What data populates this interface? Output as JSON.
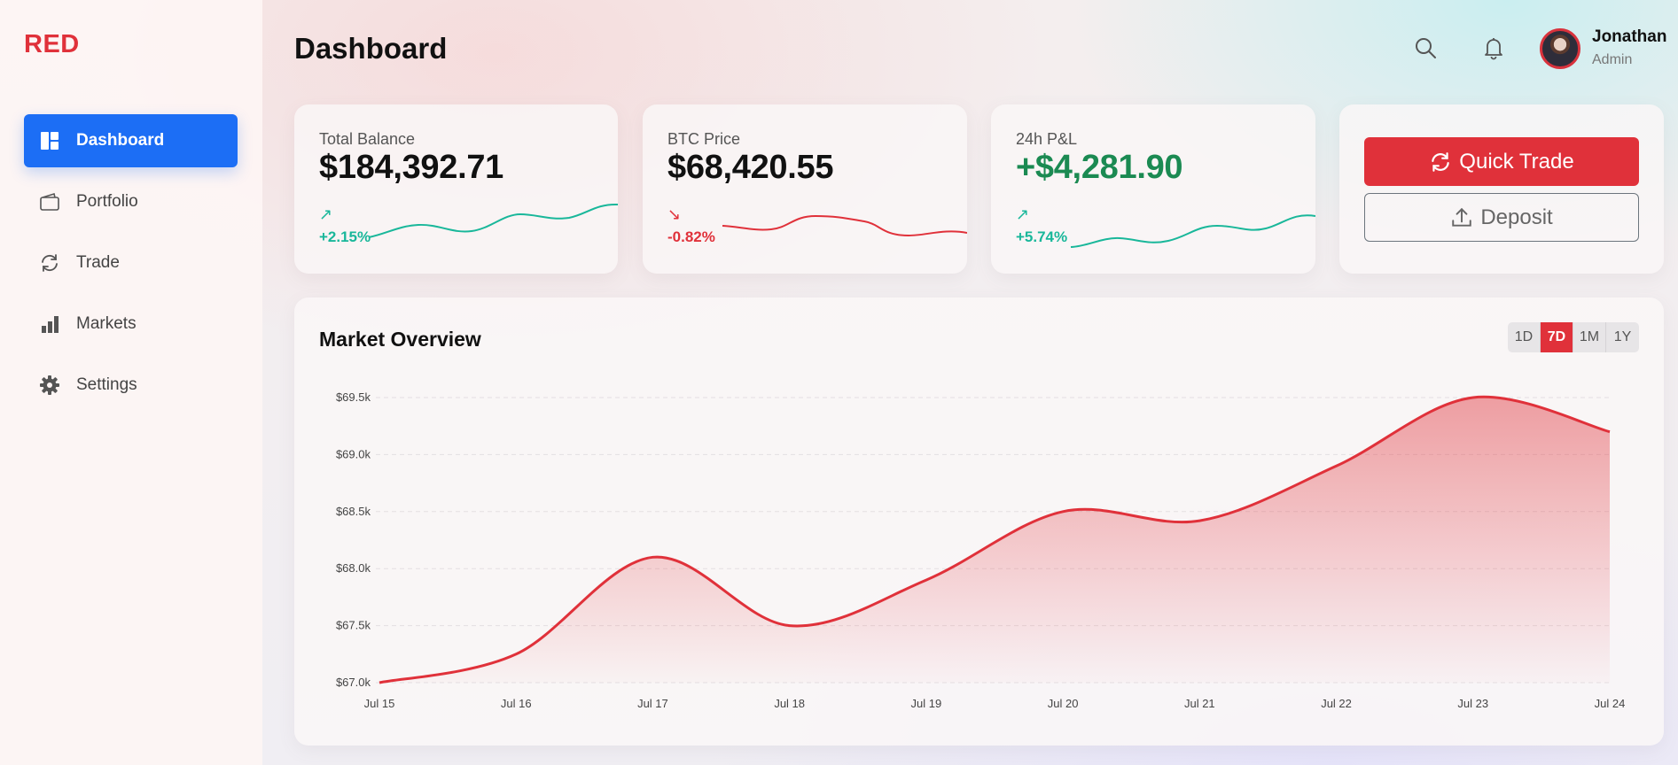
{
  "app": {
    "logo": "RED"
  },
  "sidebar": {
    "items": [
      {
        "label": "Dashboard",
        "icon": "dashboard-icon",
        "active": true
      },
      {
        "label": "Portfolio",
        "icon": "wallet-icon",
        "active": false
      },
      {
        "label": "Trade",
        "icon": "refresh-icon",
        "active": false
      },
      {
        "label": "Markets",
        "icon": "bar-chart-icon",
        "active": false
      },
      {
        "label": "Settings",
        "icon": "gear-icon",
        "active": false
      }
    ]
  },
  "header": {
    "title": "Dashboard",
    "user": {
      "name": "Jonathan",
      "role": "Admin"
    }
  },
  "cards": [
    {
      "label": "Total Balance",
      "value": "$184,392.71",
      "arrow": "↗",
      "change": "+2.15%",
      "trend": "up"
    },
    {
      "label": "BTC Price",
      "value": "$68,420.55",
      "arrow": "↘",
      "change": "-0.82%",
      "trend": "down"
    },
    {
      "label": "24h P&L",
      "value": "+$4,281.90",
      "arrow": "↗",
      "change": "+5.74%",
      "trend": "up"
    }
  ],
  "actions": {
    "quick_trade": "Quick Trade",
    "deposit": "Deposit"
  },
  "market": {
    "title": "Market Overview",
    "ranges": [
      "1D",
      "7D",
      "1M",
      "1Y"
    ],
    "active_range": "7D"
  },
  "colors": {
    "accent": "#e0313a",
    "primary": "#1c6ef5",
    "up": "#19b79a",
    "down": "#e0313a",
    "profit": "#1b8a52"
  },
  "chart_data": {
    "type": "area",
    "x": [
      "Jul 15",
      "Jul 16",
      "Jul 17",
      "Jul 18",
      "Jul 19",
      "Jul 20",
      "Jul 21",
      "Jul 22",
      "Jul 23",
      "Jul 24"
    ],
    "values": [
      67000,
      67250,
      68100,
      67500,
      67900,
      68500,
      68420,
      68900,
      69500,
      69200
    ],
    "y_ticks": [
      "$67.0k",
      "$67.5k",
      "$68.0k",
      "$68.5k",
      "$69.0k",
      "$69.5k"
    ],
    "ylim": [
      67000,
      69500
    ],
    "grid": true,
    "title": "",
    "xlabel": "",
    "ylabel": ""
  }
}
